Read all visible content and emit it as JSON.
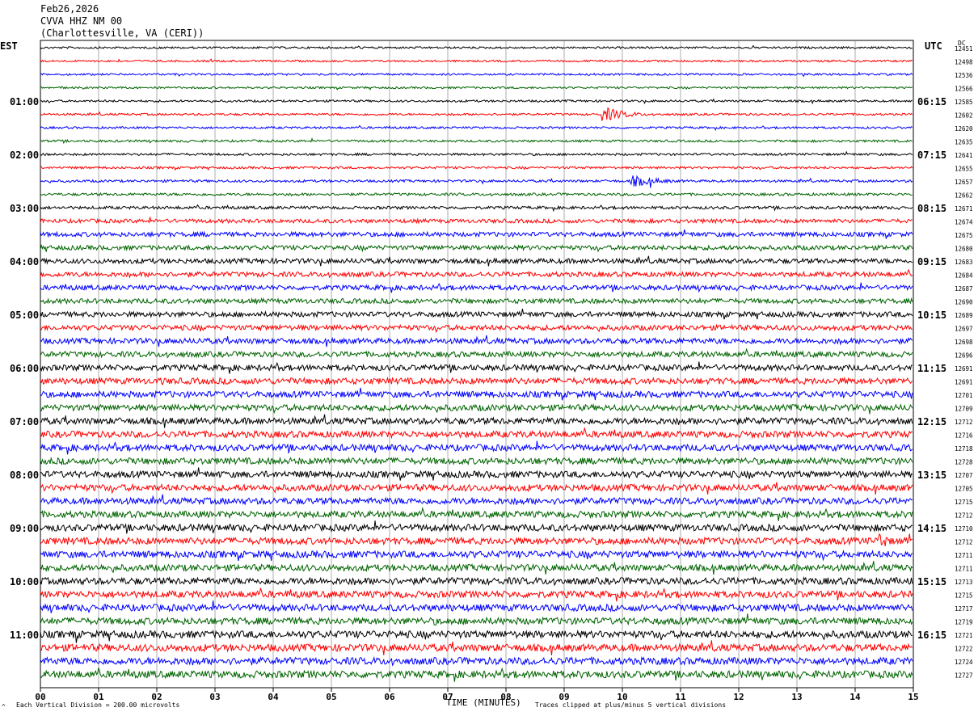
{
  "header": {
    "date": "Feb26,2026",
    "station": "CVVA HHZ NM 00",
    "location": "(Charlottesville, VA (CERI))"
  },
  "left_label": "EST",
  "right_label": "UTC",
  "dc_label": "DC",
  "footer": {
    "scale_note": "Each Vertical Division =  200.00 microvolts",
    "clip_note": "Traces clipped at plus/minus 5 vertical divisions",
    "corner_mark": "^"
  },
  "colors": {
    "trace_cycle": [
      "#000000",
      "#ff0000",
      "#0000ff",
      "#006400"
    ],
    "grid": "#000000"
  },
  "chart_data": {
    "type": "line",
    "title": "CVVA HHZ NM 00",
    "xlabel": "TIME (MINUTES)",
    "ylabel": "",
    "xlim": [
      0,
      15
    ],
    "x_ticks": [
      "00",
      "01",
      "02",
      "03",
      "04",
      "05",
      "06",
      "07",
      "08",
      "09",
      "10",
      "11",
      "12",
      "13",
      "14",
      "15"
    ],
    "est_hour_labels": [
      "01:00",
      "02:00",
      "03:00",
      "04:00",
      "05:00",
      "06:00",
      "07:00",
      "08:00",
      "09:00",
      "10:00",
      "11:00"
    ],
    "utc_hour_labels": [
      "06:15",
      "07:15",
      "08:15",
      "09:15",
      "10:15",
      "11:15",
      "12:15",
      "13:15",
      "14:15",
      "15:15",
      "16:15"
    ],
    "dc_offsets": [
      12451,
      12498,
      12536,
      12566,
      12585,
      12602,
      12620,
      12635,
      12641,
      12655,
      12657,
      12662,
      12671,
      12674,
      12675,
      12680,
      12683,
      12684,
      12687,
      12690,
      12689,
      12697,
      12698,
      12696,
      12691,
      12691,
      12701,
      12709,
      12712,
      12716,
      12718,
      12728,
      12707,
      12705,
      12715,
      12712,
      12710,
      12712,
      12711,
      12711,
      12713,
      12715,
      12717,
      12719,
      12721,
      12722,
      12724,
      12727
    ],
    "trace_amplitude": [
      1.2,
      1.2,
      1.2,
      1.2,
      1.3,
      1.3,
      1.3,
      1.4,
      1.4,
      1.4,
      1.5,
      1.6,
      1.8,
      2.4,
      2.8,
      2.8,
      3.0,
      3.0,
      3.0,
      3.0,
      3.2,
      3.2,
      3.4,
      3.4,
      3.6,
      3.8,
      3.8,
      3.8,
      4.0,
      4.0,
      4.0,
      4.0,
      4.0,
      4.0,
      4.0,
      4.0,
      4.2,
      4.2,
      4.2,
      4.0,
      4.2,
      4.2,
      4.2,
      4.2,
      4.4,
      4.4,
      4.4,
      4.4
    ],
    "events": [
      {
        "trace": 0,
        "minute": 5.45,
        "duration": 0.2,
        "amp": 3
      },
      {
        "trace": 5,
        "minute": 9.7,
        "duration": 0.8,
        "amp": 9
      },
      {
        "trace": 10,
        "minute": 10.2,
        "duration": 1.0,
        "amp": 7
      },
      {
        "trace": 25,
        "minute": 2.1,
        "duration": 0.3,
        "amp": 5
      },
      {
        "trace": 37,
        "minute": 14.45,
        "duration": 0.3,
        "amp": 12
      },
      {
        "trace": 44,
        "minute": 0.6,
        "duration": 0.4,
        "amp": 6
      },
      {
        "trace": 43,
        "minute": 6.8,
        "duration": 0.3,
        "amp": 5
      }
    ]
  }
}
